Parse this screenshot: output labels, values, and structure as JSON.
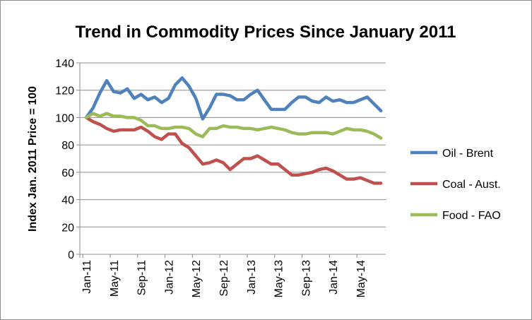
{
  "chart_data": {
    "type": "line",
    "title": "Trend in Commodity Prices Since January 2011",
    "ylabel": "Index Jan. 2011 Price = 100",
    "xlabel": "",
    "ylim": [
      0,
      140
    ],
    "yticks": [
      "0",
      "20",
      "40",
      "60",
      "80",
      "100",
      "120",
      "140"
    ],
    "x_tick_labels": [
      "Jan-11",
      "May-11",
      "Sep-11",
      "Jan-12",
      "May-12",
      "Sep-12",
      "Jan-13",
      "May-13",
      "Sep-13",
      "Jan-14",
      "May-14"
    ],
    "x_start": "Jan-11",
    "x_frequency": "monthly",
    "grid": true,
    "legend_position": "right",
    "series": [
      {
        "name": "Oil - Brent",
        "color": "#4f81bd",
        "values": [
          100,
          107,
          118,
          127,
          119,
          118,
          121,
          114,
          117,
          113,
          115,
          111,
          114,
          124,
          129,
          123,
          114,
          99,
          107,
          117,
          117,
          116,
          113,
          113,
          117,
          120,
          113,
          106,
          106,
          106,
          111,
          115,
          115,
          112,
          111,
          115,
          112,
          113,
          111,
          111,
          113,
          115,
          110,
          105
        ]
      },
      {
        "name": "Coal - Aust.",
        "color": "#c0504d",
        "values": [
          100,
          97,
          95,
          92,
          90,
          91,
          91,
          91,
          93,
          90,
          86,
          84,
          88,
          88,
          81,
          78,
          72,
          66,
          67,
          69,
          67,
          62,
          66,
          70,
          70,
          72,
          69,
          66,
          66,
          62,
          58,
          58,
          59,
          60,
          62,
          63,
          61,
          58,
          55,
          55,
          56,
          54,
          52,
          52
        ]
      },
      {
        "name": "Food - FAO",
        "color": "#9bbb59",
        "values": [
          100,
          103,
          101,
          103,
          101,
          101,
          100,
          100,
          98,
          94,
          94,
          92,
          92,
          93,
          93,
          92,
          88,
          86,
          92,
          92,
          94,
          93,
          93,
          92,
          92,
          91,
          92,
          93,
          92,
          91,
          89,
          88,
          88,
          89,
          89,
          89,
          88,
          90,
          92,
          91,
          91,
          90,
          88,
          85
        ]
      }
    ]
  }
}
